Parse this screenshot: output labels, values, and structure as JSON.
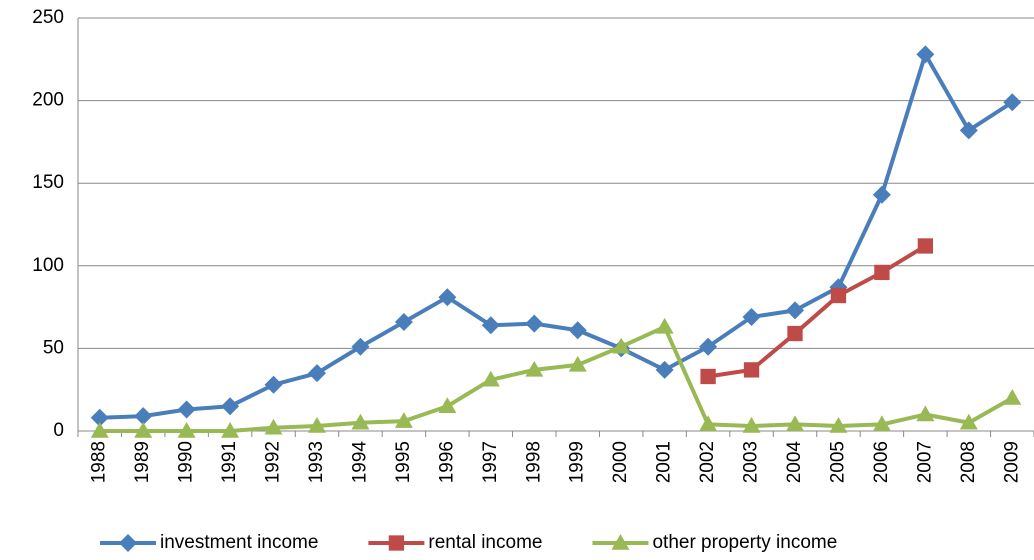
{
  "chart_data": {
    "type": "line",
    "categories": [
      "1988",
      "1989",
      "1990",
      "1991",
      "1992",
      "1993",
      "1994",
      "1995",
      "1996",
      "1997",
      "1998",
      "1999",
      "2000",
      "2001",
      "2002",
      "2003",
      "2004",
      "2005",
      "2006",
      "2007",
      "2008",
      "2009"
    ],
    "series": [
      {
        "name": "investment income",
        "color": "#4a7ebb",
        "marker": "diamond",
        "values": [
          8,
          9,
          13,
          15,
          28,
          35,
          51,
          66,
          81,
          64,
          65,
          61,
          50,
          37,
          51,
          69,
          73,
          87,
          143,
          228,
          182,
          199
        ]
      },
      {
        "name": "rental income",
        "color": "#be4b48",
        "marker": "square",
        "values": [
          null,
          null,
          null,
          null,
          null,
          null,
          null,
          null,
          null,
          null,
          null,
          null,
          null,
          null,
          33,
          37,
          59,
          82,
          96,
          112,
          null,
          null
        ]
      },
      {
        "name": "other property income",
        "color": "#98b954",
        "marker": "triangle",
        "values": [
          0,
          0,
          0,
          0,
          2,
          3,
          5,
          6,
          15,
          31,
          37,
          40,
          51,
          63,
          4,
          3,
          4,
          3,
          4,
          10,
          5,
          20
        ]
      }
    ],
    "ylim": [
      0,
      250
    ],
    "yticks": [
      0,
      50,
      100,
      150,
      200,
      250
    ],
    "grid": true,
    "legend": "bottom"
  }
}
